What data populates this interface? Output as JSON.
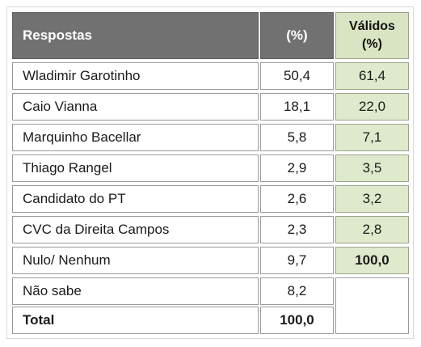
{
  "table": {
    "headers": {
      "respostas": "Respostas",
      "percent": "(%)",
      "validos_line1": "Válidos",
      "validos_line2": "(%)"
    },
    "rows": [
      {
        "name": "Wladimir Garotinho",
        "percent": "50,4",
        "validos": "61,4"
      },
      {
        "name": "Caio Vianna",
        "percent": "18,1",
        "validos": "22,0"
      },
      {
        "name": "Marquinho Bacellar",
        "percent": "5,8",
        "validos": "7,1"
      },
      {
        "name": "Thiago Rangel",
        "percent": "2,9",
        "validos": "3,5"
      },
      {
        "name": "Candidato do PT",
        "percent": "2,6",
        "validos": "3,2"
      },
      {
        "name": "CVC da Direita Campos",
        "percent": "2,3",
        "validos": "2,8"
      },
      {
        "name": "Nulo/ Nenhum",
        "percent": "9,7",
        "validos": "100,0"
      },
      {
        "name": "Não sabe",
        "percent": "8,2",
        "validos": ""
      }
    ],
    "total": {
      "name": "Total",
      "percent": "100,0"
    }
  },
  "colors": {
    "header_gray": "#717171",
    "validos_green": "#dfe9cc"
  }
}
